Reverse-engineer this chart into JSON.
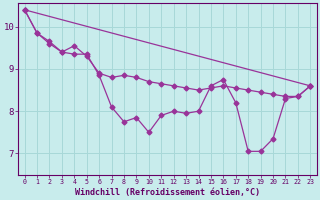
{
  "background_color": "#c8ecec",
  "grid_color": "#a8d8d8",
  "line_color": "#993399",
  "xlabel": "Windchill (Refroidissement éolien,°C)",
  "xlabel_color": "#660066",
  "tick_color": "#660066",
  "xlim": [
    -0.5,
    23.5
  ],
  "ylim": [
    6.5,
    10.55
  ],
  "yticks": [
    7,
    8,
    9,
    10
  ],
  "xticks": [
    0,
    1,
    2,
    3,
    4,
    5,
    6,
    7,
    8,
    9,
    10,
    11,
    12,
    13,
    14,
    15,
    16,
    17,
    18,
    19,
    20,
    21,
    22,
    23
  ],
  "line1_x": [
    0,
    23
  ],
  "line1_y": [
    10.4,
    8.6
  ],
  "line2_x": [
    0,
    1,
    2,
    3,
    4,
    5,
    6,
    7,
    8,
    9,
    10,
    11,
    12,
    13,
    14,
    15,
    16,
    17,
    18,
    19,
    20,
    21,
    22,
    23
  ],
  "line2_y": [
    10.4,
    9.85,
    9.6,
    9.4,
    9.55,
    9.3,
    8.9,
    8.8,
    8.85,
    8.8,
    8.7,
    8.65,
    8.6,
    8.55,
    8.5,
    8.55,
    8.6,
    8.55,
    8.5,
    8.45,
    8.4,
    8.35,
    8.35,
    8.6
  ],
  "line3_x": [
    0,
    1,
    2,
    3,
    4,
    5,
    6,
    7,
    8,
    9,
    10,
    11,
    12,
    13,
    14,
    15,
    16,
    17,
    18,
    19,
    20,
    21,
    22,
    23
  ],
  "line3_y": [
    10.4,
    9.85,
    9.65,
    9.4,
    9.35,
    9.35,
    8.85,
    8.1,
    7.75,
    7.85,
    7.5,
    7.9,
    8.0,
    7.95,
    8.0,
    8.6,
    8.75,
    8.2,
    7.05,
    7.05,
    7.35,
    8.3,
    8.35,
    8.6
  ],
  "marker": "D",
  "marker_size": 2.5,
  "line_width": 0.9
}
